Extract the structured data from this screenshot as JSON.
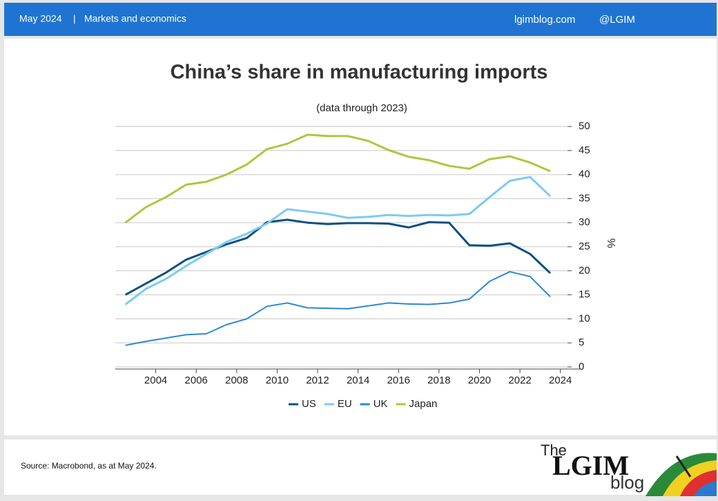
{
  "header": {
    "date": "May 2024",
    "separator": "|",
    "section": "Markets and economics",
    "site": "lgimblog.com",
    "handle": "@LGIM"
  },
  "chart_data": {
    "type": "line",
    "title": "China’s share in manufacturing imports",
    "subtitle": "(data through 2023)",
    "y_label": "%",
    "x": [
      2002.5,
      2003.5,
      2004.5,
      2005.5,
      2006.5,
      2007.5,
      2008.5,
      2009.5,
      2010.5,
      2011.5,
      2012.5,
      2013.5,
      2014.5,
      2015.5,
      2016.5,
      2017.5,
      2018.5,
      2019.5,
      2020.5,
      2021.5,
      2022.5,
      2023.5
    ],
    "series": [
      {
        "name": "US",
        "color": "#0d4f80",
        "values": [
          15,
          17.3,
          19.6,
          22.3,
          23.9,
          25.5,
          26.8,
          30.1,
          30.6,
          30,
          29.7,
          29.9,
          29.9,
          29.8,
          29,
          30.1,
          30,
          25.3,
          25.2,
          25.7,
          23.5,
          19.5
        ]
      },
      {
        "name": "EU",
        "color": "#7ccaf2",
        "values": [
          13,
          16.2,
          18.3,
          21,
          23.5,
          26,
          27.7,
          29.8,
          32.8,
          32.3,
          31.8,
          31,
          31.2,
          31.6,
          31.4,
          31.6,
          31.5,
          31.8,
          35.3,
          38.7,
          39.5,
          35.5
        ]
      },
      {
        "name": "UK",
        "color": "#2a87d2",
        "values": [
          4.5,
          5.3,
          6,
          6.7,
          6.9,
          8.8,
          10,
          12.6,
          13.3,
          12.3,
          12.2,
          12.1,
          12.7,
          13.3,
          13.1,
          13,
          13.3,
          14.1,
          17.8,
          19.8,
          18.8,
          14.6
        ]
      },
      {
        "name": "Japan",
        "color": "#a9c93b",
        "values": [
          30,
          33.2,
          35.3,
          37.9,
          38.5,
          40,
          42.1,
          45.3,
          46.4,
          48.3,
          48,
          48,
          47,
          45.1,
          43.7,
          43,
          41.8,
          41.2,
          43.2,
          43.8,
          42.5,
          40.7
        ]
      }
    ],
    "xlim": [
      2002,
      2025
    ],
    "xticks": [
      2004,
      2006,
      2008,
      2010,
      2012,
      2014,
      2016,
      2018,
      2020,
      2022,
      2024
    ],
    "ylim": [
      0,
      50
    ],
    "yticks": [
      0,
      5,
      10,
      15,
      20,
      25,
      30,
      35,
      40,
      45,
      50
    ],
    "grid": true,
    "legend": "bottom"
  },
  "footer": {
    "source": "Source: Macrobond, as at May 2024.",
    "logo_the": "The",
    "logo_name": "LGIM",
    "logo_blog": "blog"
  }
}
